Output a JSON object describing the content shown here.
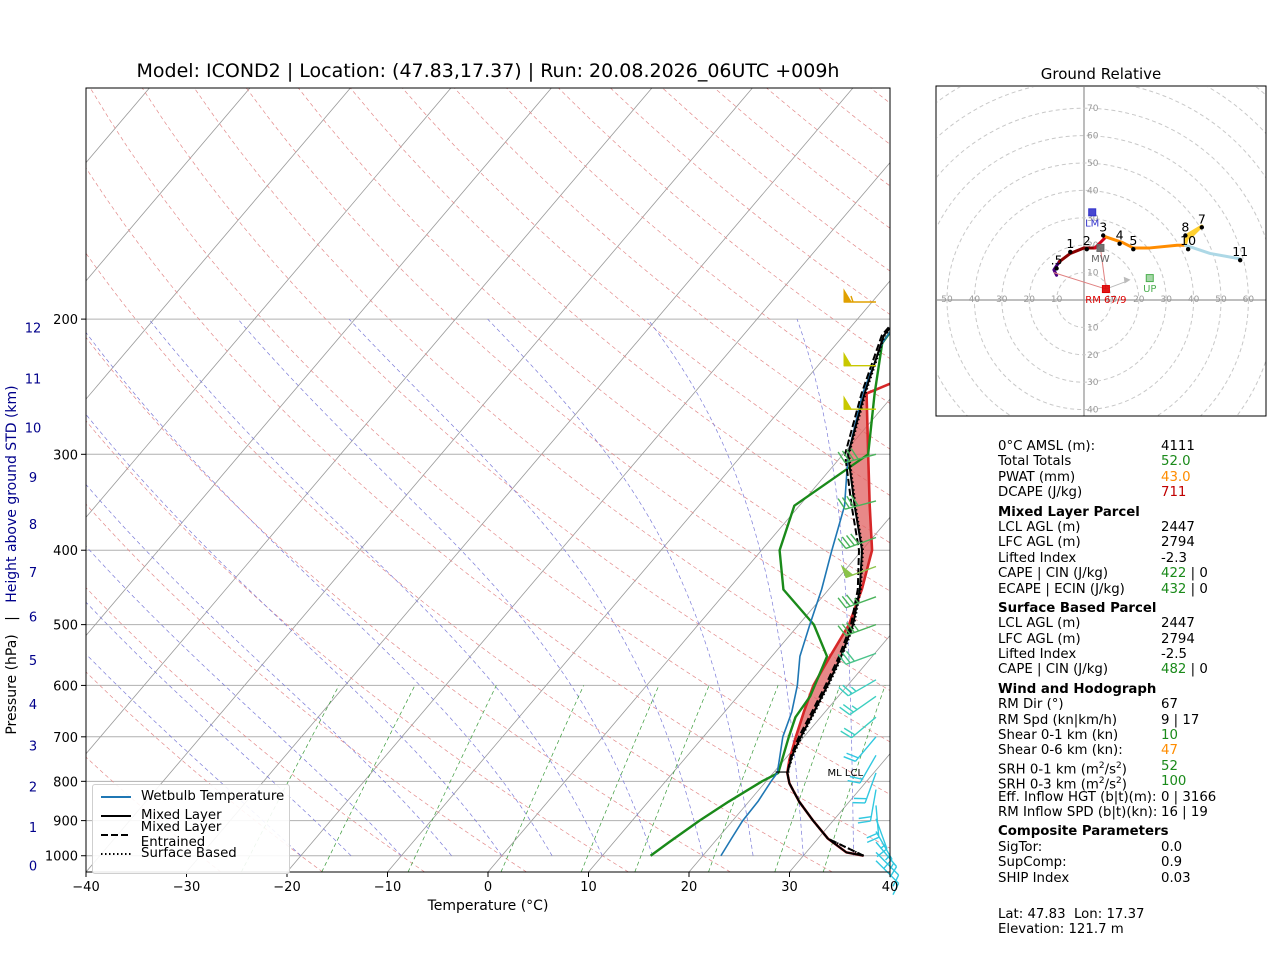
{
  "title": "Model: ICOND2 | Location: (47.83,17.37) | Run: 20.08.2026_06UTC +009h",
  "xlabel": "Temperature (°C)",
  "ylabel_pressure": "Pressure (hPa)",
  "ylabel_sep": "|",
  "ylabel_height": "Height above ground STD (km)",
  "ml_lcl_label": "ML LCL",
  "legend": {
    "wetbulb": "Wetbulb Temperature",
    "mixed": "Mixed Layer",
    "entrained": "Mixed Layer Entrained",
    "surface": "Surface Based"
  },
  "chart_data": [
    {
      "type": "line",
      "subtype": "skew-T log-P sounding",
      "title": "Model: ICOND2 | Location: (47.83,17.37) | Run: 20.08.2026_06UTC +009h",
      "xlabel": "Temperature (°C)",
      "ylabel": "Pressure (hPa)",
      "xlim": [
        -40,
        40
      ],
      "ylim_pressure": [
        1050,
        100
      ],
      "y_log_scale": true,
      "grid": true,
      "x_ticks": [
        -40,
        -30,
        -20,
        -10,
        0,
        10,
        20,
        30,
        40
      ],
      "x_tick_labels": [
        "−40",
        "−30",
        "−20",
        "−10",
        "0",
        "10",
        "20",
        "30",
        "40"
      ],
      "pressure_ticks": [
        200,
        300,
        400,
        500,
        600,
        700,
        800,
        900,
        1000
      ],
      "height_ticks": [
        {
          "km": "0",
          "p": 1030
        },
        {
          "km": "1",
          "p": 918
        },
        {
          "km": "2",
          "p": 812
        },
        {
          "km": "3",
          "p": 718
        },
        {
          "km": "4",
          "p": 634
        },
        {
          "km": "5",
          "p": 556
        },
        {
          "km": "6",
          "p": 488
        },
        {
          "km": "7",
          "p": 427
        },
        {
          "km": "8",
          "p": 370
        },
        {
          "km": "9",
          "p": 321
        },
        {
          "km": "10",
          "p": 277
        },
        {
          "km": "11",
          "p": 239
        },
        {
          "km": "12",
          "p": 205
        }
      ],
      "legend_position": "lower-left",
      "series": [
        {
          "name": "",
          "role": "temperature",
          "color": "#d62728",
          "points": [
            [
              36,
              1000
            ],
            [
              34,
              990
            ],
            [
              31,
              950
            ],
            [
              28,
              900
            ],
            [
              25,
              850
            ],
            [
              22.5,
              805
            ],
            [
              21.4,
              780
            ],
            [
              20.5,
              750
            ],
            [
              19.2,
              700
            ],
            [
              17.9,
              650
            ],
            [
              16.6,
              600
            ],
            [
              15.8,
              550
            ],
            [
              15,
              500
            ],
            [
              13.3,
              450
            ],
            [
              11,
              400
            ],
            [
              7,
              350
            ],
            [
              2.5,
              300
            ],
            [
              -2.8,
              250
            ],
            [
              1.5,
              230
            ],
            [
              0.5,
              190
            ],
            [
              0.2,
              190
            ]
          ]
        },
        {
          "name": "",
          "role": "dewpoint",
          "color": "#1a8a1a",
          "points": [
            [
              14.8,
              1000
            ],
            [
              15.5,
              960
            ],
            [
              16.7,
              900
            ],
            [
              18,
              850
            ],
            [
              19.6,
              800
            ],
            [
              20.5,
              780
            ],
            [
              18.5,
              700
            ],
            [
              17.5,
              660
            ],
            [
              17.2,
              620
            ],
            [
              15.5,
              550
            ],
            [
              11.5,
              500
            ],
            [
              5.5,
              450
            ],
            [
              1.8,
              400
            ],
            [
              -0.5,
              350
            ],
            [
              2.5,
              300
            ],
            [
              -2,
              250
            ],
            [
              -5.5,
              215
            ],
            [
              -6,
              190
            ]
          ]
        },
        {
          "name": "Wetbulb Temperature",
          "color": "#1f77b4",
          "points": [
            [
              21.8,
              1000
            ],
            [
              21.4,
              950
            ],
            [
              21,
              900
            ],
            [
              20.9,
              850
            ],
            [
              20.5,
              800
            ],
            [
              20.4,
              780
            ],
            [
              19.5,
              750
            ],
            [
              17.9,
              700
            ],
            [
              16.7,
              650
            ],
            [
              15,
              600
            ],
            [
              12.8,
              550
            ],
            [
              11.1,
              500
            ],
            [
              9.3,
              450
            ],
            [
              7,
              400
            ],
            [
              4.5,
              350
            ],
            [
              0.5,
              300
            ],
            [
              -3.2,
              250
            ],
            [
              -5.5,
              215
            ],
            [
              -6,
              195
            ]
          ]
        },
        {
          "name": "Mixed Layer",
          "color": "#000000",
          "points": [
            [
              36,
              1000
            ],
            [
              34,
              990
            ],
            [
              31,
              950
            ],
            [
              28,
              900
            ],
            [
              25,
              850
            ],
            [
              22.5,
              805
            ],
            [
              21.4,
              780
            ],
            [
              20.4,
              740
            ],
            [
              19.7,
              700
            ],
            [
              18.9,
              650
            ],
            [
              18,
              600
            ],
            [
              16.9,
              550
            ],
            [
              15.4,
              500
            ],
            [
              13.1,
              450
            ],
            [
              10,
              400
            ],
            [
              5.5,
              350
            ],
            [
              0.5,
              300
            ],
            [
              -3,
              250
            ],
            [
              -6,
              210
            ],
            [
              -6,
              195
            ]
          ]
        },
        {
          "name": "Mixed Layer Entrained",
          "color": "#000000",
          "points": [
            [
              36,
              1000
            ],
            [
              31,
              950
            ],
            [
              28,
              900
            ],
            [
              25,
              850
            ],
            [
              22.5,
              805
            ],
            [
              21.4,
              780
            ],
            [
              20.3,
              740
            ],
            [
              19.5,
              700
            ],
            [
              18.7,
              650
            ],
            [
              17.8,
              600
            ],
            [
              16.7,
              550
            ],
            [
              15.2,
              500
            ],
            [
              12.9,
              450
            ],
            [
              9.7,
              400
            ],
            [
              5.2,
              350
            ],
            [
              0.2,
              300
            ],
            [
              -3.3,
              250
            ],
            [
              -6.2,
              210
            ],
            [
              -6.2,
              195
            ]
          ]
        },
        {
          "name": "Surface Based",
          "color": "#000000",
          "points": [
            [
              36,
              1000
            ],
            [
              31,
              950
            ],
            [
              28,
              900
            ],
            [
              25,
              850
            ],
            [
              22.5,
              805
            ],
            [
              21.4,
              780
            ],
            [
              20.5,
              740
            ],
            [
              19.8,
              700
            ],
            [
              19,
              650
            ],
            [
              18.1,
              600
            ],
            [
              17,
              550
            ],
            [
              15.5,
              500
            ],
            [
              13.2,
              450
            ],
            [
              10.1,
              400
            ],
            [
              5.6,
              350
            ],
            [
              0.6,
              300
            ],
            [
              -2.9,
              250
            ],
            [
              -5.9,
              210
            ],
            [
              -5.9,
              195
            ]
          ]
        }
      ],
      "cape_shading": {
        "from_pressure": 780,
        "to_pressure": 250,
        "color": "#e06060"
      },
      "ml_lcl_pressure": 778,
      "wind_barbs": [
        {
          "p": 190,
          "dir": 270,
          "speed_kt": 55,
          "color": "#e0a000"
        },
        {
          "p": 230,
          "dir": 270,
          "speed_kt": 50,
          "color": "#c8c800"
        },
        {
          "p": 262,
          "dir": 270,
          "speed_kt": 50,
          "color": "#c8c800"
        },
        {
          "p": 300,
          "dir": 255,
          "speed_kt": 40,
          "color": "#49b35a"
        },
        {
          "p": 345,
          "dir": 255,
          "speed_kt": 40,
          "color": "#49b35a"
        },
        {
          "p": 385,
          "dir": 250,
          "speed_kt": 40,
          "color": "#49b35a"
        },
        {
          "p": 420,
          "dir": 250,
          "speed_kt": 50,
          "color": "#8bc34a"
        },
        {
          "p": 460,
          "dir": 250,
          "speed_kt": 35,
          "color": "#49b35a"
        },
        {
          "p": 500,
          "dir": 250,
          "speed_kt": 35,
          "color": "#49b35a"
        },
        {
          "p": 545,
          "dir": 250,
          "speed_kt": 30,
          "color": "#49c38a"
        },
        {
          "p": 590,
          "dir": 240,
          "speed_kt": 25,
          "color": "#3ccfc0"
        },
        {
          "p": 620,
          "dir": 235,
          "speed_kt": 25,
          "color": "#3ccfc0"
        },
        {
          "p": 660,
          "dir": 230,
          "speed_kt": 20,
          "color": "#3ccfc0"
        },
        {
          "p": 700,
          "dir": 220,
          "speed_kt": 20,
          "color": "#30c8e0"
        },
        {
          "p": 740,
          "dir": 210,
          "speed_kt": 20,
          "color": "#30c8e0"
        },
        {
          "p": 780,
          "dir": 200,
          "speed_kt": 20,
          "color": "#30c8e0"
        },
        {
          "p": 820,
          "dir": 190,
          "speed_kt": 20,
          "color": "#30c8e0"
        },
        {
          "p": 860,
          "dir": 175,
          "speed_kt": 20,
          "color": "#30c8e0"
        },
        {
          "p": 895,
          "dir": 160,
          "speed_kt": 15,
          "color": "#30c8e0"
        },
        {
          "p": 930,
          "dir": 150,
          "speed_kt": 15,
          "color": "#30c8e0"
        },
        {
          "p": 960,
          "dir": 140,
          "speed_kt": 15,
          "color": "#30c8e0"
        },
        {
          "p": 990,
          "dir": 135,
          "speed_kt": 10,
          "color": "#30c8e0"
        },
        {
          "p": 1015,
          "dir": 135,
          "speed_kt": 10,
          "color": "#30c8e0"
        }
      ]
    },
    {
      "type": "line",
      "subtype": "hodograph",
      "title": "Ground Relative",
      "range_kt": 70,
      "ring_labels": [
        "10",
        "20",
        "30",
        "40",
        "50",
        "60",
        "70"
      ],
      "x_labels": [
        "50",
        "40",
        "30",
        "20",
        "10",
        "10",
        "20",
        "30",
        "40",
        "50",
        "60"
      ],
      "y_labels_down": [
        "10",
        "20",
        "30",
        "40"
      ],
      "trace": [
        {
          "color": "#4b0082",
          "points": [
            [
              -10,
              9
            ],
            [
              -11,
              11
            ],
            [
              -9,
              14
            ]
          ]
        },
        {
          "color": "#8b0000",
          "points": [
            [
              -9,
              14
            ],
            [
              -5,
              17
            ],
            [
              0,
              19
            ],
            [
              4,
              19
            ]
          ]
        },
        {
          "color": "#d4001a",
          "points": [
            [
              4,
              19
            ],
            [
              8,
              23
            ]
          ]
        },
        {
          "color": "#ff8c00",
          "points": [
            [
              8,
              23
            ],
            [
              14,
              21
            ],
            [
              18,
              19
            ],
            [
              24,
              19
            ],
            [
              34,
              20
            ],
            [
              37,
              20
            ]
          ]
        },
        {
          "color": "#ffd030",
          "points": [
            [
              37,
              20
            ],
            [
              38,
              24
            ],
            [
              43,
              27
            ],
            [
              40,
              24
            ],
            [
              37,
              22
            ]
          ]
        },
        {
          "color": "#add8e6",
          "points": [
            [
              37,
              20
            ],
            [
              46,
              17
            ],
            [
              57,
              15
            ]
          ]
        }
      ],
      "labels": [
        {
          "text": ".5",
          "u": -10,
          "v": 13
        },
        {
          "text": "1",
          "u": -5,
          "v": 19
        },
        {
          "text": "2",
          "u": 1,
          "v": 20
        },
        {
          "text": "3",
          "u": 7,
          "v": 25
        },
        {
          "text": "4",
          "u": 13,
          "v": 22
        },
        {
          "text": "5",
          "u": 18,
          "v": 20
        },
        {
          "text": "8",
          "u": 37,
          "v": 25
        },
        {
          "text": "7",
          "u": 43,
          "v": 28
        },
        {
          "text": "10",
          "u": 38,
          "v": 20
        },
        {
          "text": "11",
          "u": 57,
          "v": 16
        }
      ],
      "markers": [
        {
          "name": "LM",
          "u": 3,
          "v": 32,
          "color": "#3333cc"
        },
        {
          "name": "MW",
          "u": 6,
          "v": 19,
          "color": "#666666"
        },
        {
          "name": "UP",
          "u": 24,
          "v": 8,
          "color": "#4caf50"
        },
        {
          "name": "RM 67/9",
          "u": 8,
          "v": 4,
          "color": "#dd0000"
        }
      ]
    }
  ],
  "hodo_title": "Ground Relative",
  "params": {
    "zero_c": {
      "label": "0°C AMSL (m):",
      "value": "4111",
      "color": "#000000"
    },
    "total_totals": {
      "label": "Total Totals",
      "value": "52.0",
      "color": "#1a8a1a"
    },
    "pwat": {
      "label": "PWAT (mm)",
      "value": "43.0",
      "color": "#ff8c00"
    },
    "dcape": {
      "label": "DCAPE (J/kg)",
      "value": "711",
      "color": "#c00000"
    },
    "ml_head": "Mixed Layer Parcel",
    "ml_lcl": {
      "label": "LCL AGL (m)",
      "value": "2447"
    },
    "ml_lfc": {
      "label": "LFC AGL (m)",
      "value": "2794"
    },
    "ml_li": {
      "label": "Lifted Index",
      "value": "-2.3"
    },
    "ml_cape_label": "CAPE | CIN (J/kg)",
    "ml_cape": "422",
    "ml_cin": " | 0",
    "ml_ecape_label": "ECAPE | ECIN (J/kg)",
    "ml_ecape": "432",
    "ml_ecin": " | 0",
    "sb_head": "Surface Based Parcel",
    "sb_lcl": {
      "label": "LCL AGL (m)",
      "value": "2447"
    },
    "sb_lfc": {
      "label": "LFC AGL (m)",
      "value": "2794"
    },
    "sb_li": {
      "label": "Lifted Index",
      "value": "-2.5"
    },
    "sb_cape_label": "CAPE | CIN (J/kg)",
    "sb_cape": "482",
    "sb_cin": " | 0",
    "wind_head": "Wind and Hodograph",
    "rm_dir": {
      "label": "RM Dir (°)",
      "value": "67"
    },
    "rm_spd": {
      "label": "RM Spd (kn|km/h)",
      "value": "9 | 17"
    },
    "shear01": {
      "label": "Shear 0-1 km (kn)",
      "value": "10",
      "color": "#1a8a1a"
    },
    "shear06": {
      "label": "Shear 0-6 km (kn):",
      "value": "47",
      "color": "#ff8c00"
    },
    "srh01": {
      "label_pre": "SRH 0-1 km (m",
      "label_sup": "2",
      "label_mid": "/s",
      "label_sup2": "2",
      "label_post": ")",
      "value": "52",
      "color": "#1a8a1a"
    },
    "srh03": {
      "label_pre": "SRH 0-3 km (m",
      "label_sup": "2",
      "label_mid": "/s",
      "label_sup2": "2",
      "label_post": ")",
      "value": "100",
      "color": "#1a8a1a"
    },
    "eff_inflow": {
      "label": "Eff. Inflow HGT (b|t)(m):",
      "value": "0 | 3166"
    },
    "rm_inflow": {
      "label": "RM Inflow SPD (b|t)(kn):",
      "value": "16 | 19"
    },
    "comp_head": "Composite Parameters",
    "sigtor": {
      "label": "SigTor:",
      "value": "0.0"
    },
    "supcomp": {
      "label": "SupComp:",
      "value": "0.9"
    },
    "ship": {
      "label": "SHIP Index",
      "value": "0.03"
    }
  },
  "location": {
    "latlon": "Lat: 47.83  Lon: 17.37",
    "elevation": "Elevation: 121.7 m"
  }
}
